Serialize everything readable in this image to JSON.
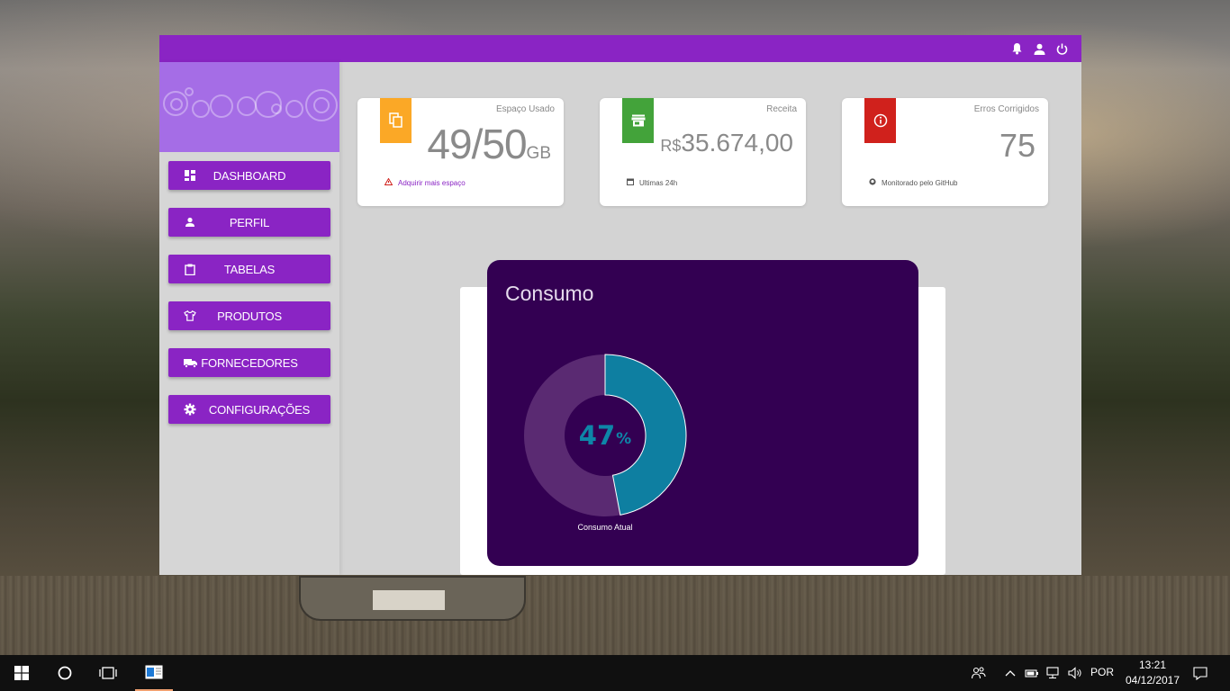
{
  "topbar": {
    "icons": [
      "bell-icon",
      "user-icon",
      "power-icon"
    ],
    "color": "#8a24c4"
  },
  "sidebar": {
    "items": [
      {
        "label": "DASHBOARD",
        "icon": "dashboard-icon"
      },
      {
        "label": "PERFIL",
        "icon": "person-icon"
      },
      {
        "label": "TABELAS",
        "icon": "clipboard-icon"
      },
      {
        "label": "PRODUTOS",
        "icon": "shirt-icon"
      },
      {
        "label": "FORNECEDORES",
        "icon": "truck-icon"
      },
      {
        "label": "CONFIGURAÇÕES",
        "icon": "gear-icon"
      }
    ]
  },
  "cards": [
    {
      "title": "Espaço Usado",
      "value": "49/50",
      "unit": "GB",
      "footer": "Adquirir mais espaço",
      "icon": "copy-icon",
      "color": "#fba826",
      "footer_icon": "warning-icon"
    },
    {
      "title": "Receita",
      "prefix": "R$",
      "value": "35.674,00",
      "footer": "Ultimas 24h",
      "icon": "store-icon",
      "color": "#43a33a",
      "footer_icon": "calendar-icon"
    },
    {
      "title": "Erros Corrigidos",
      "value": "75",
      "footer": "Monitorado pelo GitHub",
      "icon": "info-icon",
      "color": "#d0211c",
      "footer_icon": "github-icon"
    }
  ],
  "consumo": {
    "title": "Consumo",
    "percent_number": "47",
    "percent_sign": "%",
    "label": "Consumo Atual"
  },
  "chart_data": {
    "type": "pie",
    "categories": [
      "Consumo Atual",
      ""
    ],
    "values": [
      47,
      53
    ],
    "colors": [
      "#0e7fa1",
      "#5a2a72"
    ]
  },
  "taskbar": {
    "language": "POR",
    "time": "13:21",
    "date": "04/12/2017"
  }
}
